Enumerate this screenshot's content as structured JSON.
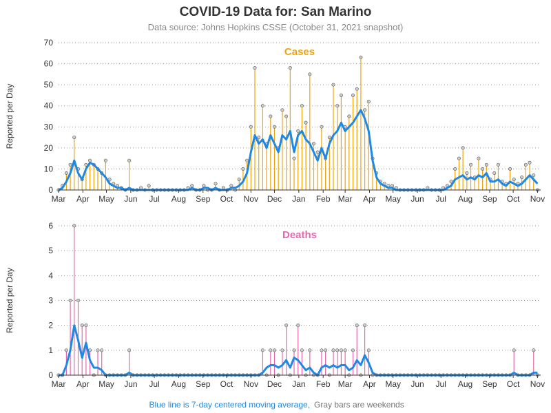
{
  "title": "COVID-19 Data for: San Marino",
  "subtitle": "Data source: Johns Hopkins CSSE (October 31, 2021 snapshot)",
  "footnote": [
    "Blue line is 7-day centered moving average,",
    "Gray bars are weekends"
  ],
  "chart_data": [
    {
      "type": "lollipop",
      "title": "Cases",
      "ylabel": "Reported per Day",
      "title_color": "#f0a30a",
      "x": [
        0,
        5,
        10,
        15,
        20,
        25,
        30,
        35,
        40,
        45,
        50,
        55,
        60,
        65,
        70,
        75,
        80,
        85,
        90,
        95,
        100,
        105,
        110,
        115,
        120,
        125,
        130,
        135,
        140,
        145,
        150,
        155,
        160,
        165,
        170,
        175,
        180,
        185,
        190,
        195,
        200,
        205,
        210,
        215,
        220,
        225,
        230,
        235,
        240,
        245,
        250,
        255,
        260,
        265,
        270,
        275,
        280,
        285,
        290,
        295,
        300,
        305,
        310,
        315,
        320,
        325,
        330,
        335,
        340,
        345,
        350,
        355,
        360,
        365,
        370,
        375,
        380,
        385,
        390,
        395,
        400,
        405,
        410,
        415,
        420,
        425,
        430,
        435,
        440,
        445,
        450,
        455,
        460,
        465,
        470,
        475,
        480,
        485,
        490,
        495,
        500,
        505,
        510,
        515,
        520,
        525,
        530,
        535,
        540,
        545,
        550,
        555,
        560,
        565,
        570,
        575,
        580,
        585,
        590,
        595,
        600,
        605,
        610
      ],
      "xlim": [
        0,
        614
      ],
      "xticks": [
        {
          "value": 0,
          "label": "Mar"
        },
        {
          "value": 31,
          "label": "Apr"
        },
        {
          "value": 61,
          "label": "May"
        },
        {
          "value": 92,
          "label": "Jun"
        },
        {
          "value": 122,
          "label": "Jul"
        },
        {
          "value": 153,
          "label": "Aug"
        },
        {
          "value": 184,
          "label": "Sep"
        },
        {
          "value": 214,
          "label": "Oct"
        },
        {
          "value": 245,
          "label": "Nov"
        },
        {
          "value": 275,
          "label": "Dec"
        },
        {
          "value": 306,
          "label": "Jan"
        },
        {
          "value": 337,
          "label": "Feb"
        },
        {
          "value": 365,
          "label": "Mar"
        },
        {
          "value": 396,
          "label": "Apr"
        },
        {
          "value": 426,
          "label": "May"
        },
        {
          "value": 457,
          "label": "Jun"
        },
        {
          "value": 487,
          "label": "Jul"
        },
        {
          "value": 518,
          "label": "Aug"
        },
        {
          "value": 549,
          "label": "Sep"
        },
        {
          "value": 579,
          "label": "Oct"
        },
        {
          "value": 610,
          "label": "Nov"
        }
      ],
      "ylim": [
        0,
        70
      ],
      "yticks": [
        0,
        10,
        20,
        30,
        40,
        50,
        60,
        70
      ],
      "grid": true,
      "series": [
        {
          "type": "lollipop",
          "color": "#f0a30a",
          "values": [
            0,
            2,
            8,
            12,
            25,
            10,
            5,
            12,
            14,
            12,
            10,
            8,
            14,
            5,
            3,
            2,
            1,
            0,
            14,
            0,
            0,
            1,
            0,
            2,
            0,
            0,
            0,
            0,
            0,
            0,
            0,
            0,
            0,
            1,
            2,
            0,
            0,
            2,
            0,
            0,
            3,
            0,
            1,
            0,
            2,
            0,
            5,
            10,
            14,
            30,
            58,
            25,
            40,
            22,
            35,
            30,
            20,
            38,
            35,
            58,
            15,
            28,
            40,
            32,
            55,
            22,
            18,
            30,
            15,
            25,
            50,
            40,
            45,
            30,
            35,
            45,
            48,
            63,
            38,
            42,
            15,
            8,
            4,
            3,
            2,
            2,
            1,
            0,
            0,
            0,
            0,
            0,
            0,
            0,
            1,
            0,
            0,
            0,
            1,
            2,
            4,
            10,
            15,
            20,
            8,
            12,
            6,
            15,
            10,
            12,
            5,
            8,
            12,
            4,
            3,
            10,
            5,
            3,
            6,
            12,
            13,
            7,
            0
          ]
        },
        {
          "type": "line",
          "color": "#1e88e5",
          "values": [
            0,
            1,
            4,
            8,
            14,
            8,
            5,
            10,
            13,
            12,
            10,
            8,
            6,
            3,
            2,
            1,
            1,
            0,
            1,
            0,
            0,
            0,
            0,
            0,
            0,
            0,
            0,
            0,
            0,
            0,
            0,
            0,
            0,
            0,
            1,
            0,
            0,
            1,
            1,
            0,
            1,
            0,
            0,
            0,
            1,
            1,
            2,
            4,
            8,
            18,
            26,
            22,
            24,
            20,
            26,
            22,
            18,
            26,
            24,
            28,
            18,
            26,
            28,
            24,
            22,
            18,
            14,
            20,
            15,
            22,
            26,
            28,
            32,
            28,
            30,
            32,
            35,
            38,
            34,
            28,
            14,
            6,
            3,
            2,
            1,
            1,
            0,
            0,
            0,
            0,
            0,
            0,
            0,
            0,
            0,
            0,
            0,
            0,
            0,
            1,
            2,
            5,
            6,
            7,
            5,
            6,
            5,
            7,
            6,
            8,
            4,
            4,
            5,
            3,
            2,
            4,
            3,
            2,
            3,
            5,
            7,
            5,
            3
          ]
        }
      ]
    },
    {
      "type": "lollipop",
      "title": "Deaths",
      "ylabel": "Reported per Day",
      "title_color": "#e667af",
      "x": [
        0,
        5,
        10,
        15,
        20,
        25,
        30,
        35,
        40,
        45,
        50,
        55,
        60,
        65,
        70,
        75,
        80,
        85,
        90,
        95,
        100,
        105,
        110,
        115,
        120,
        125,
        130,
        135,
        140,
        145,
        150,
        155,
        160,
        165,
        170,
        175,
        180,
        185,
        190,
        195,
        200,
        205,
        210,
        215,
        220,
        225,
        230,
        235,
        240,
        245,
        250,
        255,
        260,
        265,
        270,
        275,
        280,
        285,
        290,
        295,
        300,
        305,
        310,
        315,
        320,
        325,
        330,
        335,
        340,
        345,
        350,
        355,
        360,
        365,
        370,
        375,
        380,
        385,
        390,
        395,
        400,
        405,
        410,
        415,
        420,
        425,
        430,
        435,
        440,
        445,
        450,
        455,
        460,
        465,
        470,
        475,
        480,
        485,
        490,
        495,
        500,
        505,
        510,
        515,
        520,
        525,
        530,
        535,
        540,
        545,
        550,
        555,
        560,
        565,
        570,
        575,
        580,
        585,
        590,
        595,
        600,
        605,
        610
      ],
      "xlim": [
        0,
        614
      ],
      "xticks": [
        {
          "value": 0,
          "label": "Mar"
        },
        {
          "value": 31,
          "label": "Apr"
        },
        {
          "value": 61,
          "label": "May"
        },
        {
          "value": 92,
          "label": "Jun"
        },
        {
          "value": 122,
          "label": "Jul"
        },
        {
          "value": 153,
          "label": "Aug"
        },
        {
          "value": 184,
          "label": "Sep"
        },
        {
          "value": 214,
          "label": "Oct"
        },
        {
          "value": 245,
          "label": "Nov"
        },
        {
          "value": 275,
          "label": "Dec"
        },
        {
          "value": 306,
          "label": "Jan"
        },
        {
          "value": 337,
          "label": "Feb"
        },
        {
          "value": 365,
          "label": "Mar"
        },
        {
          "value": 396,
          "label": "Apr"
        },
        {
          "value": 426,
          "label": "May"
        },
        {
          "value": 457,
          "label": "Jun"
        },
        {
          "value": 487,
          "label": "Jul"
        },
        {
          "value": 518,
          "label": "Aug"
        },
        {
          "value": 549,
          "label": "Sep"
        },
        {
          "value": 579,
          "label": "Oct"
        },
        {
          "value": 610,
          "label": "Nov"
        }
      ],
      "ylim": [
        0,
        6
      ],
      "yticks": [
        0,
        1,
        2,
        3,
        4,
        5,
        6
      ],
      "grid": true,
      "series": [
        {
          "type": "lollipop",
          "color": "#e667af",
          "values": [
            0,
            0,
            1,
            3,
            6,
            3,
            2,
            2,
            1,
            0,
            1,
            1,
            0,
            0,
            0,
            0,
            0,
            0,
            1,
            0,
            0,
            0,
            0,
            0,
            0,
            0,
            0,
            0,
            0,
            0,
            0,
            0,
            0,
            0,
            0,
            0,
            0,
            0,
            0,
            0,
            0,
            0,
            0,
            0,
            0,
            0,
            0,
            0,
            0,
            0,
            0,
            0,
            1,
            0,
            1,
            1,
            0,
            1,
            2,
            0,
            1,
            2,
            1,
            0,
            1,
            0,
            0,
            1,
            1,
            0,
            1,
            1,
            1,
            1,
            0,
            1,
            2,
            0,
            2,
            1,
            0,
            0,
            0,
            0,
            0,
            0,
            0,
            0,
            0,
            0,
            0,
            0,
            0,
            0,
            0,
            0,
            0,
            0,
            0,
            0,
            0,
            0,
            0,
            0,
            0,
            0,
            0,
            0,
            0,
            0,
            0,
            0,
            0,
            0,
            0,
            0,
            1,
            0,
            0,
            0,
            0,
            1,
            0
          ]
        },
        {
          "type": "line",
          "color": "#1e88e5",
          "values": [
            0,
            0,
            0.4,
            1,
            2,
            1.4,
            0.7,
            1.3,
            0.6,
            0.3,
            0.3,
            0.2,
            0,
            0,
            0,
            0,
            0,
            0,
            0.1,
            0,
            0,
            0,
            0,
            0,
            0,
            0,
            0,
            0,
            0,
            0,
            0,
            0,
            0,
            0,
            0,
            0,
            0,
            0,
            0,
            0,
            0,
            0,
            0,
            0,
            0,
            0,
            0,
            0,
            0,
            0,
            0,
            0,
            0.1,
            0.3,
            0.4,
            0.4,
            0.3,
            0.4,
            0.6,
            0.3,
            0.7,
            0.6,
            0.4,
            0.2,
            0.3,
            0.1,
            0,
            0.3,
            0.4,
            0.3,
            0.4,
            0.3,
            0.4,
            0.4,
            0.2,
            0.3,
            0.6,
            0.4,
            0.8,
            0.5,
            0.1,
            0,
            0,
            0,
            0,
            0,
            0,
            0,
            0,
            0,
            0,
            0,
            0,
            0,
            0,
            0,
            0,
            0,
            0,
            0,
            0,
            0,
            0,
            0,
            0,
            0,
            0,
            0,
            0,
            0,
            0,
            0,
            0,
            0,
            0,
            0,
            0.1,
            0,
            0,
            0,
            0,
            0.1,
            0.1
          ]
        }
      ]
    }
  ]
}
